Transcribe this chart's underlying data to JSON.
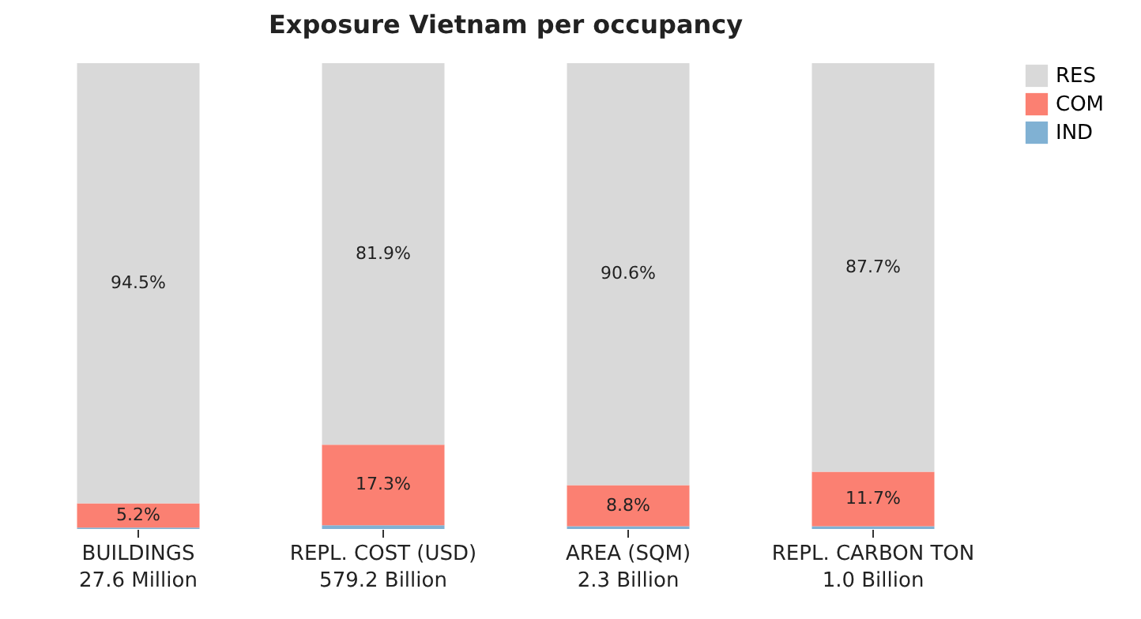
{
  "chart_data": {
    "type": "bar",
    "title": "Exposure Vietnam per occupancy",
    "stacked": true,
    "legend": "top right",
    "categories": [
      "BUILDINGS\n27.6 Million",
      "REPL. COST (USD)\n579.2 Billion",
      "AREA (SQM)\n2.3 Billion",
      "REPL. CARBON TON\n1.0 Billion"
    ],
    "series": [
      {
        "name": "IND",
        "color": "#80b1d3",
        "values": [
          0.3,
          0.8,
          0.6,
          0.6
        ],
        "value_labels": [
          null,
          null,
          null,
          null
        ]
      },
      {
        "name": "COM",
        "color": "#fb8072",
        "values": [
          5.2,
          17.3,
          8.8,
          11.7
        ],
        "value_labels": [
          "5.2%",
          "17.3%",
          "8.8%",
          "11.7%"
        ]
      },
      {
        "name": "RES",
        "color": "#d9d9d9",
        "values": [
          94.5,
          81.9,
          90.6,
          87.7
        ],
        "value_labels": [
          "94.5%",
          "81.9%",
          "90.6%",
          "87.7%"
        ]
      }
    ]
  }
}
